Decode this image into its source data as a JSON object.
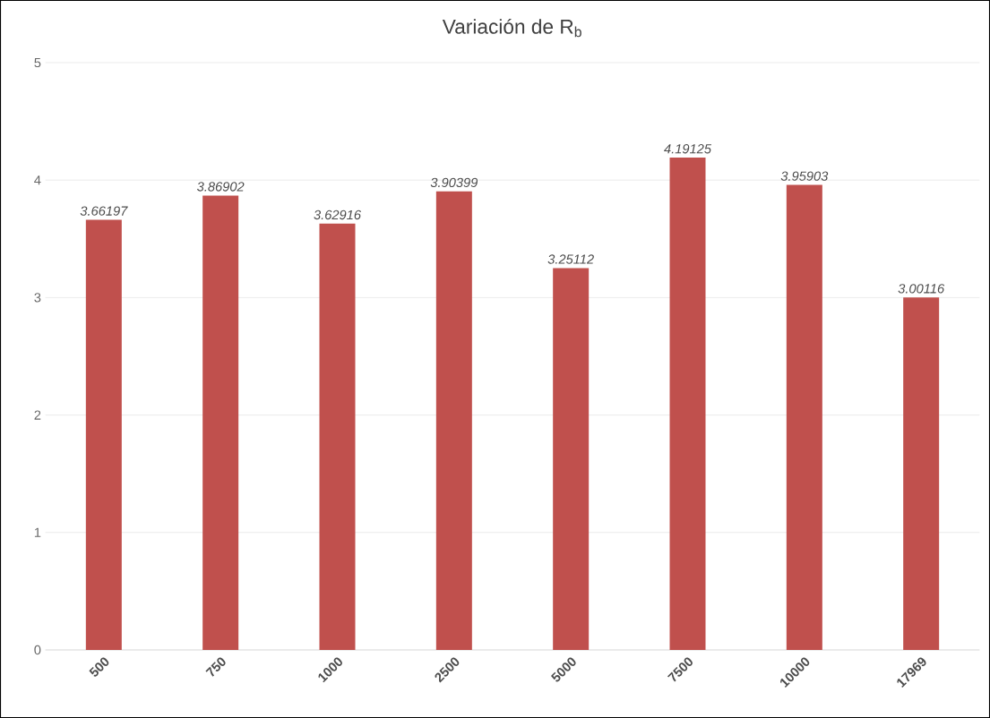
{
  "chart_data": {
    "type": "bar",
    "title": "Variación  de R$_{b}$",
    "categories": [
      "500",
      "750",
      "1000",
      "2500",
      "5000",
      "7500",
      "10000",
      "17969"
    ],
    "values": [
      3.66197,
      3.86902,
      3.62916,
      3.90399,
      3.25112,
      4.19125,
      3.95903,
      3.00116
    ],
    "color": "#c0504d",
    "ylim": [
      0,
      5
    ],
    "yticks": [
      0,
      1,
      2,
      3,
      4,
      5
    ],
    "grid": "y",
    "data_labels": true
  }
}
